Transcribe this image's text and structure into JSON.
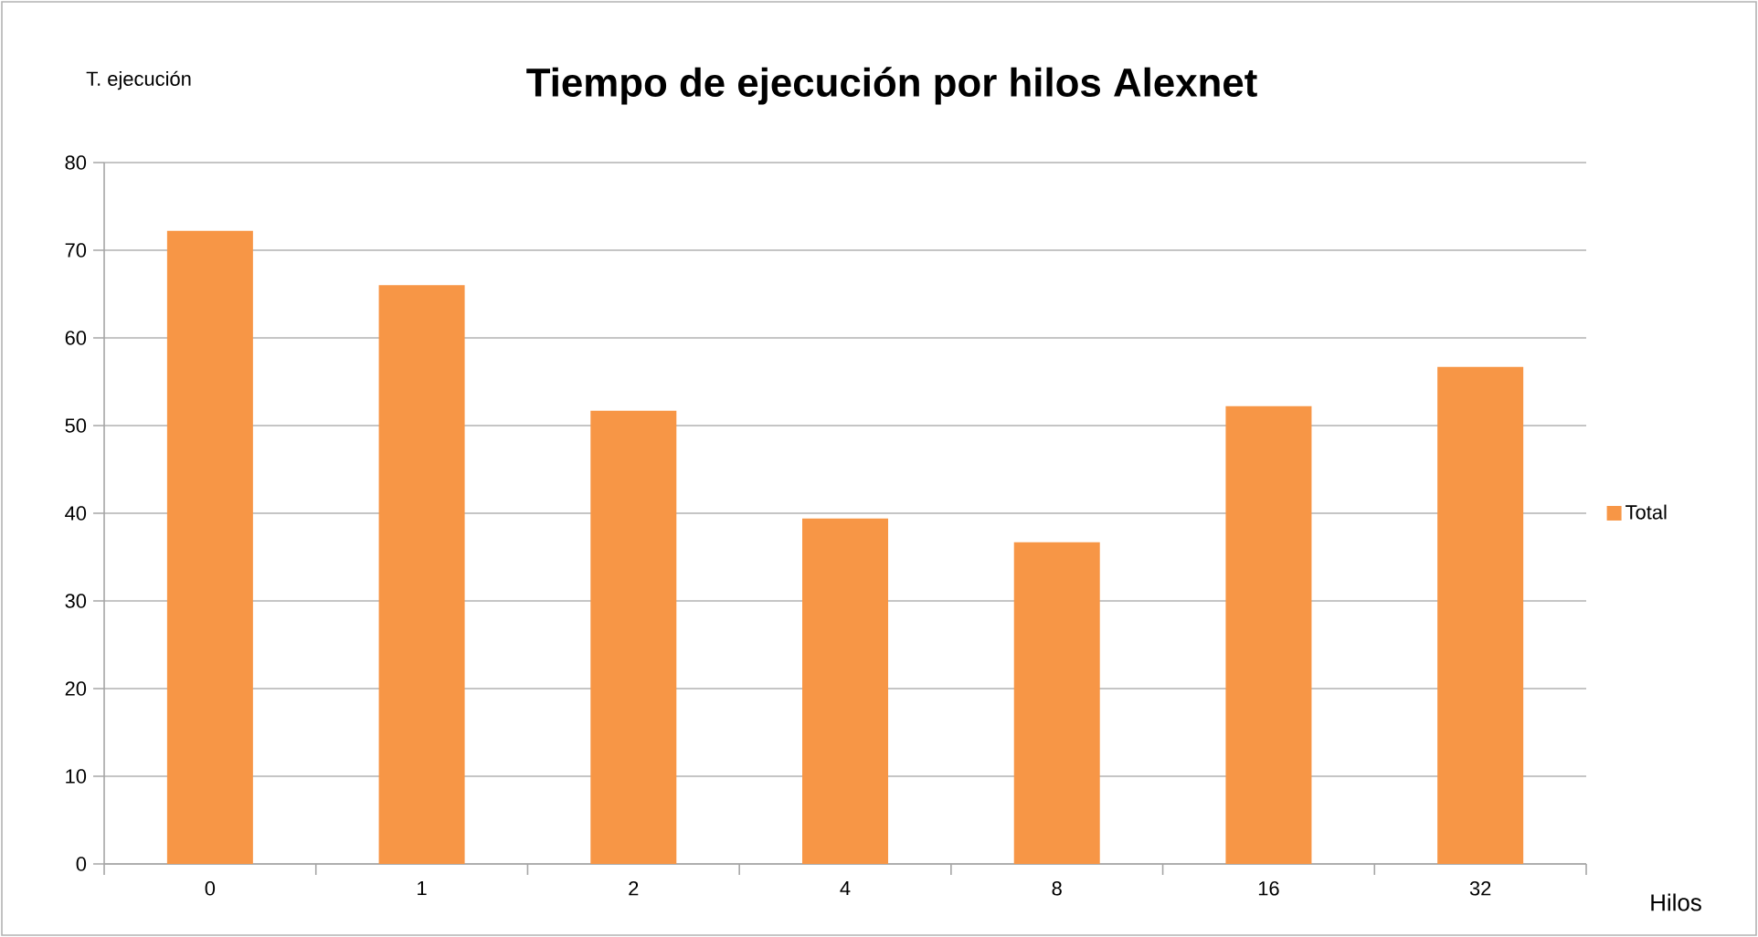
{
  "chart_data": {
    "type": "bar",
    "title": "Tiempo de ejecución por hilos Alexnet",
    "xlabel": "Hilos",
    "ylabel": "T. ejecución",
    "categories": [
      "0",
      "1",
      "2",
      "4",
      "8",
      "16",
      "32"
    ],
    "series": [
      {
        "name": "Total",
        "color": "#f79646",
        "values": [
          72.2,
          66.0,
          51.7,
          39.4,
          36.7,
          52.2,
          56.7
        ]
      }
    ],
    "ylim": [
      0,
      80
    ],
    "yticks": [
      0,
      10,
      20,
      30,
      40,
      50,
      60,
      70,
      80
    ],
    "grid": "y",
    "legend": "right"
  }
}
